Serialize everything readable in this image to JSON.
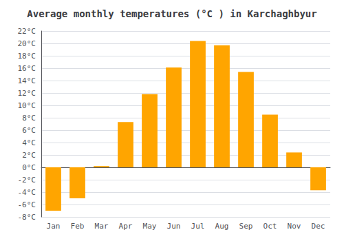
{
  "chart_data": {
    "type": "bar",
    "title": "Average monthly temperatures (°C ) in Karchaghbyur",
    "categories": [
      "Jan",
      "Feb",
      "Mar",
      "Apr",
      "May",
      "Jun",
      "Jul",
      "Aug",
      "Sep",
      "Oct",
      "Nov",
      "Dec"
    ],
    "values": [
      -7.0,
      -5.0,
      0.2,
      7.3,
      11.8,
      16.1,
      20.4,
      19.7,
      15.4,
      8.5,
      2.4,
      -3.7
    ],
    "color": "#FFA500",
    "ylim": [
      -8,
      22
    ],
    "yticks": [
      {
        "value": -8,
        "label": "-8°C"
      },
      {
        "value": -6,
        "label": "-6°C"
      },
      {
        "value": -4,
        "label": "-4°C"
      },
      {
        "value": -2,
        "label": "-2°C"
      },
      {
        "value": 0,
        "label": "0°C"
      },
      {
        "value": 2,
        "label": "2°C"
      },
      {
        "value": 4,
        "label": "4°C"
      },
      {
        "value": 6,
        "label": "6°C"
      },
      {
        "value": 8,
        "label": "8°C"
      },
      {
        "value": 10,
        "label": "10°C"
      },
      {
        "value": 12,
        "label": "12°C"
      },
      {
        "value": 14,
        "label": "14°C"
      },
      {
        "value": 16,
        "label": "16°C"
      },
      {
        "value": 18,
        "label": "18°C"
      },
      {
        "value": 20,
        "label": "20°C"
      },
      {
        "value": 22,
        "label": "22°C"
      }
    ],
    "grid": true
  }
}
